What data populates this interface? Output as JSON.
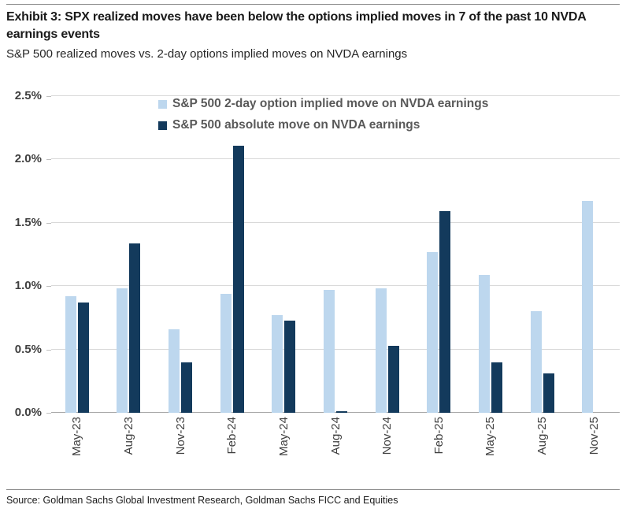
{
  "header": {
    "exhibit_title": "Exhibit 3: SPX realized moves have been below the options implied moves in 7 of the past 10 NVDA earnings events",
    "subtitle": "S&P 500 realized moves vs. 2-day options implied moves on NVDA earnings"
  },
  "chart_data": {
    "type": "bar",
    "title": "S&P 500 realized moves vs. 2-day options implied moves on NVDA earnings",
    "categories": [
      "May-23",
      "Aug-23",
      "Nov-23",
      "Feb-24",
      "May-24",
      "Aug-24",
      "Nov-24",
      "Feb-25",
      "May-25",
      "Aug-25",
      "Nov-25"
    ],
    "series": [
      {
        "name": "S&P 500 2-day option implied move on NVDA earnings",
        "color": "#bdd7ee",
        "values": [
          0.92,
          0.98,
          0.66,
          0.94,
          0.77,
          0.97,
          0.98,
          1.27,
          1.09,
          0.8,
          1.67
        ]
      },
      {
        "name": "S&P 500 absolute move on NVDA earnings",
        "color": "#133a5c",
        "values": [
          0.87,
          1.34,
          0.4,
          2.11,
          0.73,
          0.01,
          0.53,
          1.59,
          0.4,
          0.31,
          null
        ]
      }
    ],
    "xlabel": "",
    "ylabel": "",
    "ylim": [
      0,
      2.5
    ],
    "yticks": [
      "2.5%",
      "2.0%",
      "1.5%",
      "1.0%",
      "0.5%",
      "0.0%"
    ],
    "ytick_values": [
      2.5,
      2.0,
      1.5,
      1.0,
      0.5,
      0.0
    ],
    "grid": "horizontal",
    "legend_position": "top-inside"
  },
  "footer": {
    "source": "Source: Goldman Sachs Global Investment Research, Goldman Sachs FICC and Equities"
  },
  "colors": {
    "implied_bar": "#bdd7ee",
    "realized_bar": "#133a5c",
    "gridline": "#d9d9d9",
    "axis_line": "#a8a8a8",
    "axis_text": "#404040",
    "legend_text": "#595959",
    "title_text": "#1a1a1a"
  }
}
